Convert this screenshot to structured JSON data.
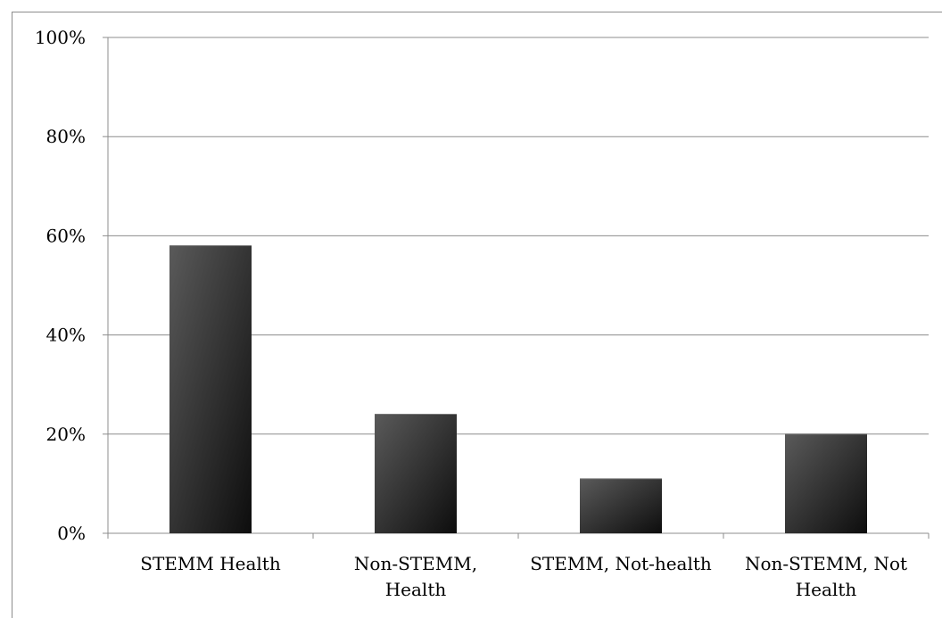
{
  "chart_data": {
    "type": "bar",
    "categories": [
      [
        "STEMM Health"
      ],
      [
        "Non-STEMM,",
        "Health"
      ],
      [
        "STEMM, Not-health"
      ],
      [
        "Non-STEMM, Not",
        "Health"
      ]
    ],
    "values": [
      58,
      24,
      11,
      20
    ],
    "ylim": [
      0,
      100
    ],
    "yticks": [
      0,
      20,
      40,
      60,
      80,
      100
    ],
    "ytick_labels": [
      "0%",
      "20%",
      "40%",
      "60%",
      "80%",
      "100%"
    ],
    "title": "",
    "xlabel": "",
    "ylabel": "",
    "grid": true,
    "legend": "none",
    "colors": {
      "bar_light": "#5a5a5a",
      "bar_dark": "#0d0d0d",
      "grid": "#8c8c8c",
      "axis": "#8c8c8c"
    }
  }
}
